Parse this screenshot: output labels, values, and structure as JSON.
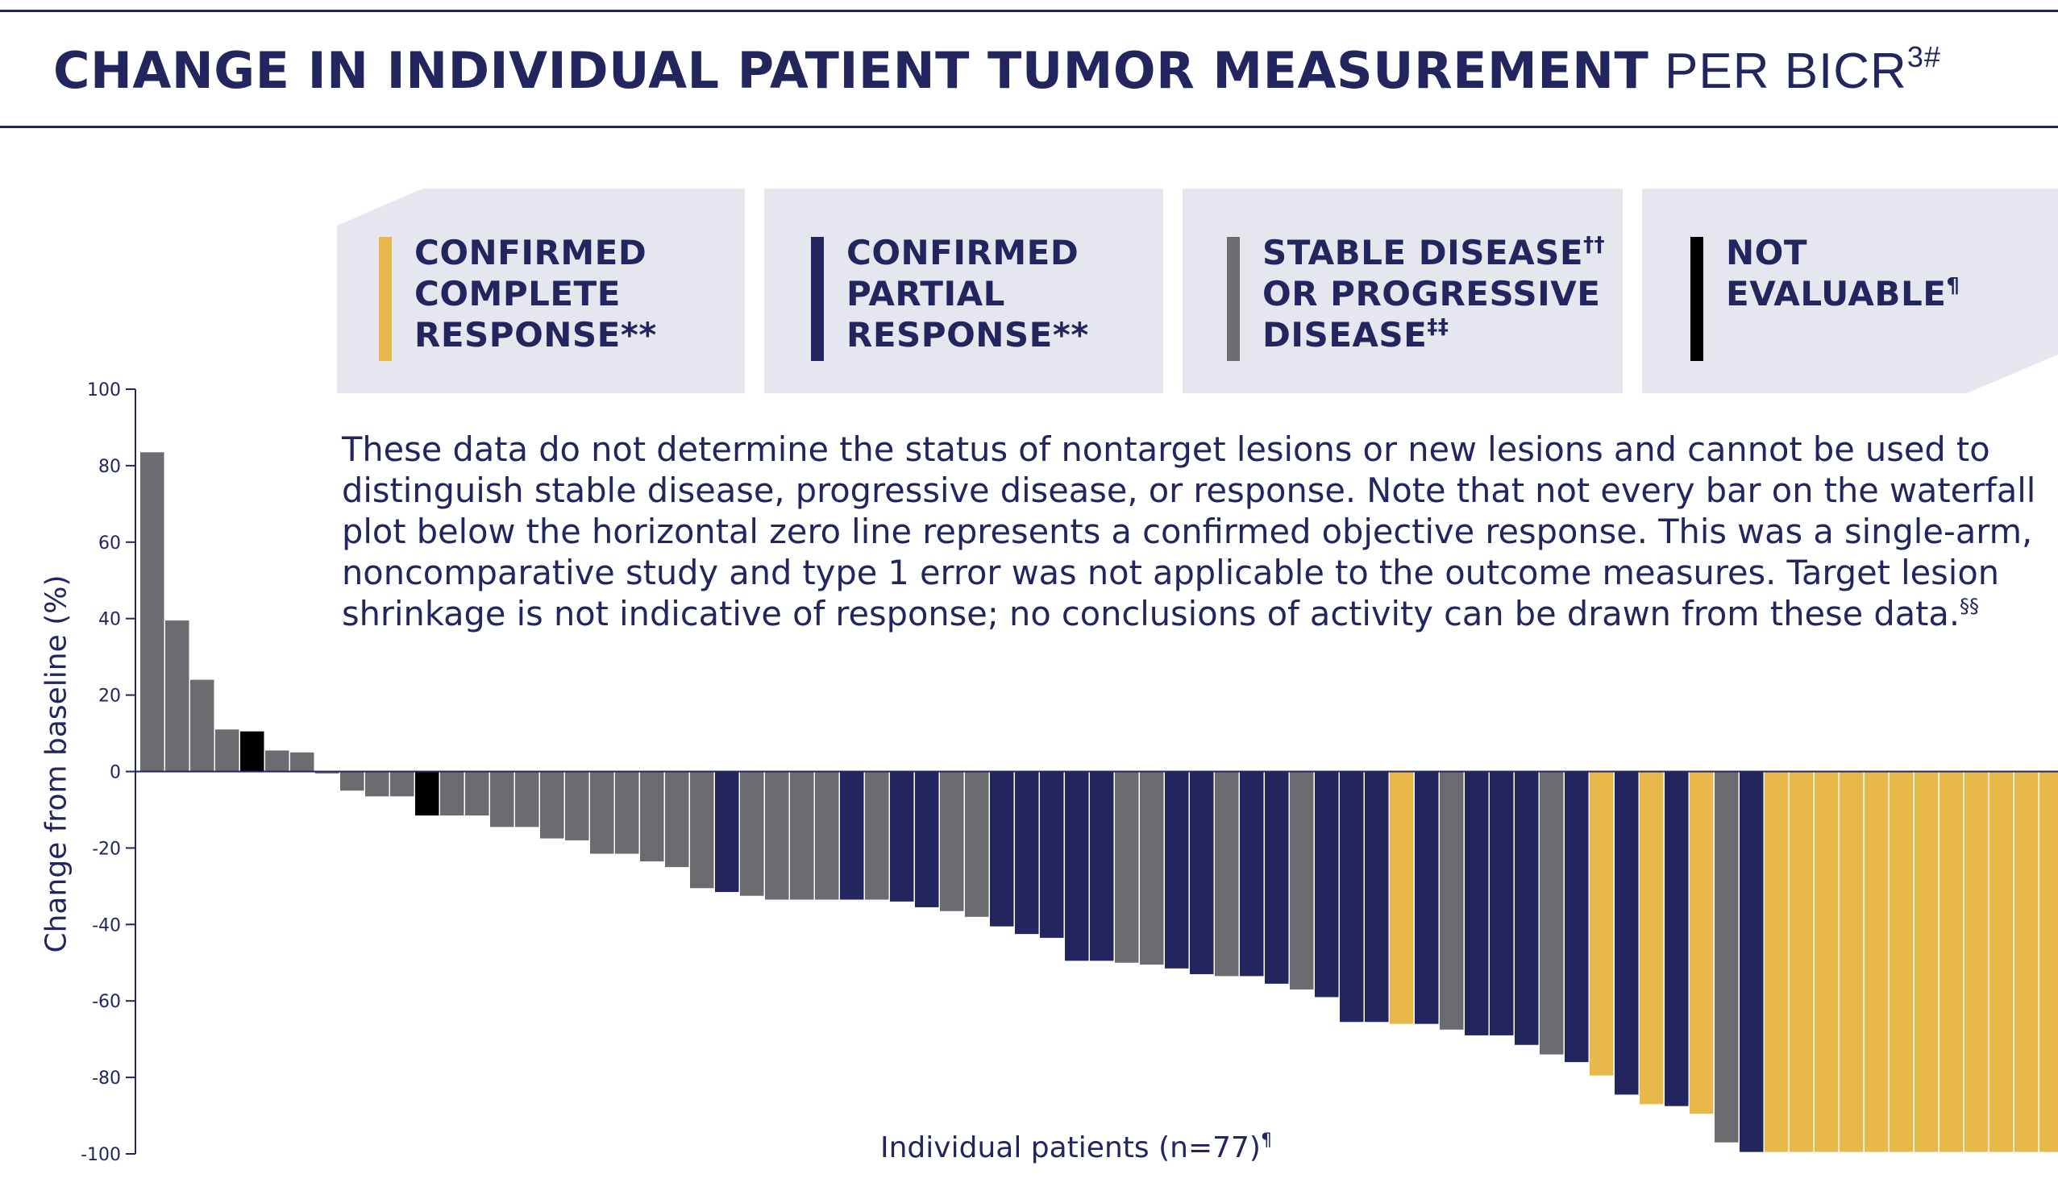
{
  "title": {
    "bold": "CHANGE IN INDIVIDUAL PATIENT TUMOR MEASUREMENT",
    "light": "PER BICR",
    "sup": "3#"
  },
  "legend": [
    {
      "line1": "CONFIRMED",
      "line2": "COMPLETE",
      "line3": "RESPONSE**",
      "color": "#e8b84a",
      "sup1": "",
      "sup2": "",
      "sup3": ""
    },
    {
      "line1": "CONFIRMED",
      "line2": "PARTIAL",
      "line3": "RESPONSE**",
      "color": "#23255e",
      "sup1": "",
      "sup2": "",
      "sup3": ""
    },
    {
      "line1": "STABLE DISEASE",
      "line2": "OR PROGRESSIVE",
      "line3": "DISEASE",
      "color": "#6b6b70",
      "sup1": "††",
      "sup2": "",
      "sup3": "‡‡"
    },
    {
      "line1": "NOT",
      "line2": "EVALUABLE",
      "line3": "",
      "color": "#000000",
      "sup1": "",
      "sup2": "¶",
      "sup3": ""
    }
  ],
  "note": {
    "text": "These data do not determine the status of nontarget lesions or new lesions and cannot be used to distinguish stable disease, progressive disease, or response. Note that not every bar on the waterfall plot below the horizontal zero line represents a confirmed objective response. This was a single-arm, noncomparative study and type 1 error was not applicable to the outcome measures. Target lesion shrinkage is not indicative of response; no conclusions of activity can be drawn from these data.",
    "sup": "§§"
  },
  "chart_data": {
    "type": "bar",
    "xlabel": "Individual patients (n=77)",
    "xlabel_sup": "¶",
    "ylabel": "Change from baseline (%)",
    "ylim": [
      -100,
      100
    ],
    "yticks": [
      100,
      80,
      60,
      40,
      20,
      0,
      -20,
      -40,
      -60,
      -80,
      -100
    ],
    "grid": false,
    "categories_key": {
      "CR": "Confirmed complete response",
      "PR": "Confirmed partial response",
      "SD/PD": "Stable disease or progressive disease",
      "NE": "Not evaluable"
    },
    "colors": {
      "CR": "#e8b84a",
      "PR": "#23255e",
      "SD/PD": "#6b6b70",
      "NE": "#000000"
    },
    "values": [
      83.5,
      39.5,
      24,
      11,
      10.5,
      5.5,
      5,
      -0.5,
      -5,
      -6.5,
      -6.5,
      -11.5,
      -11.5,
      -11.5,
      -14.5,
      -14.5,
      -17.5,
      -18,
      -21.5,
      -21.5,
      -23.5,
      -25,
      -30.5,
      -31.5,
      -32.5,
      -33.5,
      -33.5,
      -33.5,
      -33.5,
      -33.5,
      -34,
      -35.5,
      -36.5,
      -38,
      -40.5,
      -42.5,
      -43.5,
      -49.5,
      -49.5,
      -50,
      -50.5,
      -51.5,
      -53,
      -53.5,
      -53.5,
      -55.5,
      -57,
      -59,
      -65.5,
      -65.5,
      -66,
      -66,
      -67.5,
      -69,
      -69,
      -71.5,
      -74,
      -76,
      -79.5,
      -84.5,
      -87,
      -87.5,
      -89.5,
      -97,
      -99.5,
      -99.5,
      -99.5,
      -99.5,
      -99.5,
      -99.5,
      -99.5,
      -99.5,
      -99.5,
      -99.5,
      -99.5,
      -99.5,
      -99.5
    ],
    "response": [
      "SD/PD",
      "SD/PD",
      "SD/PD",
      "SD/PD",
      "NE",
      "SD/PD",
      "SD/PD",
      "SD/PD",
      "SD/PD",
      "SD/PD",
      "SD/PD",
      "NE",
      "SD/PD",
      "SD/PD",
      "SD/PD",
      "SD/PD",
      "SD/PD",
      "SD/PD",
      "SD/PD",
      "SD/PD",
      "SD/PD",
      "SD/PD",
      "SD/PD",
      "PR",
      "SD/PD",
      "SD/PD",
      "SD/PD",
      "SD/PD",
      "PR",
      "SD/PD",
      "PR",
      "PR",
      "SD/PD",
      "SD/PD",
      "PR",
      "PR",
      "PR",
      "PR",
      "PR",
      "SD/PD",
      "SD/PD",
      "PR",
      "PR",
      "SD/PD",
      "PR",
      "PR",
      "SD/PD",
      "PR",
      "PR",
      "PR",
      "CR",
      "PR",
      "SD/PD",
      "PR",
      "PR",
      "PR",
      "SD/PD",
      "PR",
      "CR",
      "PR",
      "CR",
      "PR",
      "CR",
      "SD/PD",
      "PR",
      "CR",
      "CR",
      "CR",
      "CR",
      "CR",
      "CR",
      "CR",
      "CR",
      "CR",
      "CR",
      "CR",
      "CR"
    ]
  }
}
